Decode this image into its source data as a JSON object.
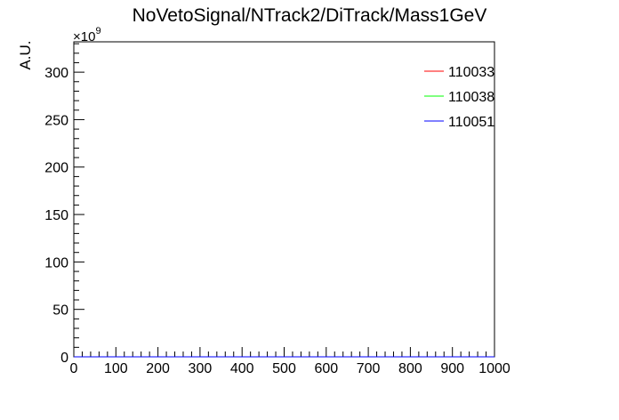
{
  "chart_data": {
    "type": "line",
    "title": "NoVetoSignal/NTrack2/DiTrack/Mass1GeV",
    "xlabel": "",
    "ylabel": "A.U.",
    "y_exponent_label": "×10",
    "y_exponent_power": "9",
    "xlim": [
      0,
      1000
    ],
    "ylim": [
      0,
      332
    ],
    "x_ticks": [
      0,
      100,
      200,
      300,
      400,
      500,
      600,
      700,
      800,
      900,
      1000
    ],
    "x_tick_labels": [
      "0",
      "100",
      "200",
      "300",
      "400",
      "500",
      "600",
      "700",
      "800",
      "900",
      "1000"
    ],
    "y_ticks": [
      0,
      50,
      100,
      150,
      200,
      250,
      300
    ],
    "y_tick_labels": [
      "0",
      "50",
      "100",
      "150",
      "200",
      "250",
      "300"
    ],
    "grid": false,
    "legend_position": "top-right",
    "series": [
      {
        "name": "110033",
        "color": "#ff0000",
        "x": [
          0,
          1000
        ],
        "y": [
          0,
          0
        ]
      },
      {
        "name": "110038",
        "color": "#00ff00",
        "x": [
          0,
          1000
        ],
        "y": [
          0,
          0
        ]
      },
      {
        "name": "110051",
        "color": "#0000ff",
        "x": [
          0,
          1000
        ],
        "y": [
          0,
          0
        ]
      }
    ]
  }
}
